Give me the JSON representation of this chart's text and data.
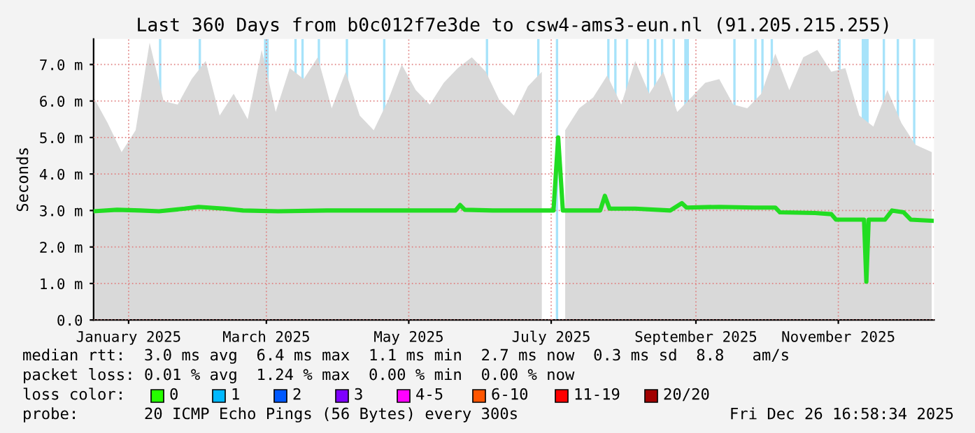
{
  "chart_data": {
    "type": "line",
    "title": "Last 360 Days from b0c012f7e3de to csw4-ams3-eun.nl (91.205.215.255)",
    "ylabel": "Seconds",
    "xlim": [
      "2024-12-31",
      "2025-12-26"
    ],
    "xticks": [
      {
        "value": "2025-01-15",
        "label": "January 2025"
      },
      {
        "value": "2025-03-15",
        "label": "March 2025"
      },
      {
        "value": "2025-05-15",
        "label": "May 2025"
      },
      {
        "value": "2025-07-15",
        "label": "July 2025"
      },
      {
        "value": "2025-09-15",
        "label": "September 2025"
      },
      {
        "value": "2025-11-15",
        "label": "November 2025"
      }
    ],
    "ylim": [
      0,
      7.7
    ],
    "yticks": [
      {
        "value": 0,
        "label": "0.0"
      },
      {
        "value": 1,
        "label": "1.0 m"
      },
      {
        "value": 2,
        "label": "2.0 m"
      },
      {
        "value": 3,
        "label": "3.0 m"
      },
      {
        "value": 4,
        "label": "4.0 m"
      },
      {
        "value": 5,
        "label": "5.0 m"
      },
      {
        "value": 6,
        "label": "6.0 m"
      },
      {
        "value": 7,
        "label": "7.0 m"
      }
    ],
    "grid": true,
    "series": [
      {
        "type": "area",
        "color": "#d9d9d9",
        "x": [
          "2024-12-31",
          "2025-01-06",
          "2025-01-12",
          "2025-01-18",
          "2025-01-24",
          "2025-01-30",
          "2025-02-05",
          "2025-02-11",
          "2025-02-17",
          "2025-02-23",
          "2025-03-01",
          "2025-03-07",
          "2025-03-13",
          "2025-03-19",
          "2025-03-25",
          "2025-03-31",
          "2025-04-06",
          "2025-04-12",
          "2025-04-18",
          "2025-04-24",
          "2025-04-30",
          "2025-05-06",
          "2025-05-12",
          "2025-05-18",
          "2025-05-24",
          "2025-05-30",
          "2025-06-05",
          "2025-06-11",
          "2025-06-17",
          "2025-06-23",
          "2025-06-29",
          "2025-07-05",
          "2025-07-11",
          "2025-07-17",
          "2025-07-19",
          "2025-07-21",
          "2025-07-27",
          "2025-08-02",
          "2025-08-08",
          "2025-08-14",
          "2025-08-20",
          "2025-08-26",
          "2025-09-01",
          "2025-09-07",
          "2025-09-13",
          "2025-09-19",
          "2025-09-25",
          "2025-10-01",
          "2025-10-07",
          "2025-10-13",
          "2025-10-19",
          "2025-10-25",
          "2025-10-31",
          "2025-11-06",
          "2025-11-12",
          "2025-11-18",
          "2025-11-24",
          "2025-11-30",
          "2025-12-06",
          "2025-12-12",
          "2025-12-18",
          "2025-12-25"
        ],
        "values": [
          6.1,
          5.4,
          4.6,
          5.2,
          7.6,
          6.0,
          5.9,
          6.6,
          7.1,
          5.6,
          6.2,
          5.5,
          7.4,
          5.7,
          6.9,
          6.6,
          7.2,
          5.8,
          6.8,
          5.6,
          5.2,
          6.0,
          7.0,
          6.3,
          5.9,
          6.5,
          6.9,
          7.2,
          6.8,
          6.0,
          5.6,
          6.4,
          6.8,
          null,
          null,
          5.2,
          5.8,
          6.1,
          6.7,
          5.9,
          7.1,
          6.2,
          6.8,
          5.7,
          6.1,
          6.5,
          6.6,
          5.9,
          5.8,
          6.2,
          7.3,
          6.3,
          7.2,
          7.4,
          6.8,
          6.9,
          5.6,
          5.3,
          6.3,
          5.4,
          4.8,
          4.6
        ]
      },
      {
        "color": "#22dd22",
        "x": [
          "2024-12-31",
          "2025-01-10",
          "2025-01-20",
          "2025-01-28",
          "2025-02-08",
          "2025-02-14",
          "2025-02-25",
          "2025-03-05",
          "2025-03-20",
          "2025-04-10",
          "2025-05-01",
          "2025-05-25",
          "2025-06-04",
          "2025-06-06",
          "2025-06-08",
          "2025-06-20",
          "2025-07-10",
          "2025-07-16",
          "2025-07-18",
          "2025-07-20",
          "2025-07-25",
          "2025-08-05",
          "2025-08-07",
          "2025-08-09",
          "2025-08-20",
          "2025-09-04",
          "2025-09-09",
          "2025-09-11",
          "2025-09-25",
          "2025-10-10",
          "2025-10-19",
          "2025-10-21",
          "2025-11-05",
          "2025-11-12",
          "2025-11-14",
          "2025-11-26",
          "2025-11-27",
          "2025-11-28",
          "2025-12-05",
          "2025-12-08",
          "2025-12-13",
          "2025-12-16",
          "2025-12-25"
        ],
        "values": [
          2.98,
          3.02,
          3.0,
          2.98,
          3.05,
          3.1,
          3.05,
          3.0,
          2.98,
          3.0,
          3.0,
          3.0,
          3.0,
          3.15,
          3.02,
          3.0,
          3.0,
          3.0,
          5.0,
          3.0,
          3.0,
          3.0,
          3.4,
          3.05,
          3.05,
          3.0,
          3.2,
          3.08,
          3.1,
          3.08,
          3.08,
          2.95,
          2.93,
          2.9,
          2.75,
          2.75,
          1.05,
          2.75,
          2.75,
          3.0,
          2.95,
          2.75,
          2.72
        ]
      }
    ],
    "bands": [
      {
        "axis": "x",
        "from": "2025-01-28",
        "to": "2025-01-29",
        "color": "#a7e3fa"
      },
      {
        "axis": "x",
        "from": "2025-02-14",
        "to": "2025-02-15",
        "color": "#a7e3fa"
      },
      {
        "axis": "x",
        "from": "2025-03-14",
        "to": "2025-03-16",
        "color": "#a7e3fa"
      },
      {
        "axis": "x",
        "from": "2025-03-27",
        "to": "2025-03-28",
        "color": "#a7e3fa"
      },
      {
        "axis": "x",
        "from": "2025-03-30",
        "to": "2025-03-31",
        "color": "#a7e3fa"
      },
      {
        "axis": "x",
        "from": "2025-04-06",
        "to": "2025-04-07",
        "color": "#a7e3fa"
      },
      {
        "axis": "x",
        "from": "2025-04-18",
        "to": "2025-04-19",
        "color": "#a7e3fa"
      },
      {
        "axis": "x",
        "from": "2025-05-04",
        "to": "2025-05-05",
        "color": "#a7e3fa"
      },
      {
        "axis": "x",
        "from": "2025-06-17",
        "to": "2025-06-18",
        "color": "#a7e3fa"
      },
      {
        "axis": "x",
        "from": "2025-07-09",
        "to": "2025-07-10",
        "color": "#a7e3fa"
      },
      {
        "axis": "x",
        "from": "2025-07-17",
        "to": "2025-07-18",
        "color": "#a7e3fa"
      },
      {
        "axis": "x",
        "from": "2025-08-08",
        "to": "2025-08-09",
        "color": "#a7e3fa"
      },
      {
        "axis": "x",
        "from": "2025-08-11",
        "to": "2025-08-12",
        "color": "#a7e3fa"
      },
      {
        "axis": "x",
        "from": "2025-08-16",
        "to": "2025-08-17",
        "color": "#a7e3fa"
      },
      {
        "axis": "x",
        "from": "2025-08-25",
        "to": "2025-08-26",
        "color": "#a7e3fa"
      },
      {
        "axis": "x",
        "from": "2025-08-28",
        "to": "2025-08-29",
        "color": "#a7e3fa"
      },
      {
        "axis": "x",
        "from": "2025-08-31",
        "to": "2025-09-01",
        "color": "#a7e3fa"
      },
      {
        "axis": "x",
        "from": "2025-09-05",
        "to": "2025-09-06",
        "color": "#a7e3fa"
      },
      {
        "axis": "x",
        "from": "2025-09-10",
        "to": "2025-09-12",
        "color": "#a7e3fa"
      },
      {
        "axis": "x",
        "from": "2025-10-01",
        "to": "2025-10-02",
        "color": "#a7e3fa"
      },
      {
        "axis": "x",
        "from": "2025-10-10",
        "to": "2025-10-11",
        "color": "#a7e3fa"
      },
      {
        "axis": "x",
        "from": "2025-10-13",
        "to": "2025-10-14",
        "color": "#a7e3fa"
      },
      {
        "axis": "x",
        "from": "2025-10-17",
        "to": "2025-10-18",
        "color": "#a7e3fa"
      },
      {
        "axis": "x",
        "from": "2025-11-15",
        "to": "2025-11-16",
        "color": "#a7e3fa"
      },
      {
        "axis": "x",
        "from": "2025-11-25",
        "to": "2025-11-28",
        "color": "#a7e3fa"
      },
      {
        "axis": "x",
        "from": "2025-12-04",
        "to": "2025-12-05",
        "color": "#a7e3fa"
      },
      {
        "axis": "x",
        "from": "2025-12-10",
        "to": "2025-12-11",
        "color": "#a7e3fa"
      },
      {
        "axis": "x",
        "from": "2025-12-17",
        "to": "2025-12-18",
        "color": "#a7e3fa"
      }
    ],
    "annotations": [
      "median rtt:  3.0 ms avg  6.4 ms max  1.1 ms min  2.7 ms now  0.3 ms sd  8.8   am/s",
      "packet loss: 0.01 % avg  1.24 % max  0.00 % min  0.00 % now",
      "loss color:",
      "0",
      "1",
      "2",
      "3",
      "4-5",
      "6-10",
      "11-19",
      "20/20",
      "probe:       20 ICMP Echo Pings (56 Bytes) every 300s",
      "Fri Dec 26 16:58:34 2025"
    ]
  }
}
